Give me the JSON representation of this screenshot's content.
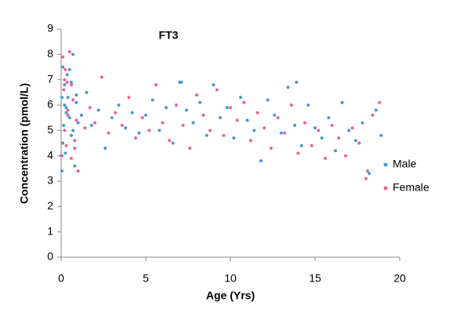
{
  "chart_data": {
    "type": "scatter",
    "title": "FT3",
    "xlabel": "Age (Yrs)",
    "ylabel": "Concentration (pmol/L)",
    "xlim": [
      0,
      20
    ],
    "xticks": [
      0,
      5,
      10,
      15,
      20
    ],
    "ylim": [
      0,
      9
    ],
    "yticks": [
      0,
      1,
      2,
      3,
      4,
      5,
      6,
      7,
      8,
      9
    ],
    "grid": false,
    "legend": "right",
    "series": [
      {
        "name": "Male",
        "color": "#4a98d6",
        "x": [
          0.05,
          0.1,
          0.15,
          0.2,
          0.25,
          0.3,
          0.35,
          0.4,
          0.5,
          0.6,
          0.7,
          0.8,
          0.9,
          1.0,
          0.1,
          0.2,
          0.3,
          0.5,
          0.7,
          0.9,
          1.2,
          1.5,
          1.8,
          2.2,
          2.6,
          3.0,
          3.4,
          3.8,
          4.2,
          4.6,
          5.0,
          5.4,
          5.8,
          6.2,
          6.6,
          7.0,
          7.4,
          7.8,
          8.2,
          8.6,
          9.0,
          9.4,
          9.8,
          10.2,
          10.6,
          11.0,
          11.4,
          11.8,
          12.2,
          12.6,
          13.0,
          13.4,
          13.8,
          14.2,
          14.6,
          15.0,
          15.4,
          15.8,
          16.2,
          16.6,
          17.0,
          17.4,
          17.8,
          18.2,
          18.6,
          18.9,
          0.0,
          0.05,
          0.6,
          7.1,
          13.9
        ],
        "values": [
          3.4,
          7.5,
          5.2,
          6.8,
          4.1,
          5.9,
          7.2,
          6.3,
          5.5,
          4.8,
          8.0,
          3.6,
          6.1,
          5.3,
          4.5,
          6.0,
          5.7,
          7.4,
          5.0,
          6.4,
          5.6,
          6.5,
          5.2,
          5.8,
          4.3,
          5.5,
          6.0,
          5.1,
          5.7,
          4.9,
          5.6,
          6.2,
          5.0,
          5.9,
          4.5,
          6.9,
          5.8,
          5.3,
          6.1,
          4.8,
          6.8,
          5.5,
          5.9,
          4.7,
          6.3,
          5.4,
          5.0,
          3.8,
          6.2,
          5.6,
          4.9,
          6.7,
          5.2,
          4.4,
          6.0,
          5.1,
          4.7,
          5.5,
          4.2,
          6.1,
          5.0,
          4.6,
          5.3,
          3.3,
          5.8,
          4.8,
          4.0,
          6.3,
          6.9,
          6.9,
          6.9
        ]
      },
      {
        "name": "Female",
        "color": "#f0609a",
        "x": [
          0.05,
          0.1,
          0.15,
          0.2,
          0.25,
          0.3,
          0.35,
          0.4,
          0.5,
          0.6,
          0.7,
          0.8,
          0.9,
          1.0,
          0.2,
          0.4,
          0.6,
          0.8,
          1.4,
          1.7,
          2.0,
          2.4,
          2.8,
          3.2,
          3.6,
          4.0,
          4.4,
          4.8,
          5.2,
          5.6,
          6.0,
          6.4,
          6.8,
          7.2,
          7.6,
          8.0,
          8.4,
          8.8,
          9.2,
          9.6,
          10.0,
          10.4,
          10.8,
          11.2,
          11.6,
          12.0,
          12.4,
          12.8,
          13.2,
          13.6,
          14.0,
          14.4,
          14.8,
          15.2,
          15.6,
          16.0,
          16.4,
          16.8,
          17.2,
          17.6,
          18.0,
          18.4,
          18.8,
          18.1
        ],
        "values": [
          4.0,
          7.9,
          6.6,
          5.0,
          7.4,
          4.4,
          6.9,
          5.8,
          8.1,
          3.9,
          6.2,
          4.6,
          5.4,
          3.4,
          7.0,
          5.6,
          6.8,
          4.3,
          5.1,
          5.9,
          5.3,
          7.1,
          4.9,
          5.7,
          5.2,
          6.3,
          4.7,
          5.5,
          5.0,
          6.8,
          5.3,
          4.6,
          6.0,
          5.2,
          4.3,
          6.4,
          5.6,
          5.0,
          6.6,
          4.8,
          5.9,
          5.4,
          6.1,
          4.6,
          5.7,
          5.1,
          4.3,
          5.5,
          4.9,
          6.0,
          4.1,
          5.3,
          4.4,
          5.0,
          3.9,
          5.2,
          4.7,
          4.0,
          5.1,
          4.5,
          3.1,
          5.6,
          6.1,
          3.4
        ]
      }
    ]
  }
}
